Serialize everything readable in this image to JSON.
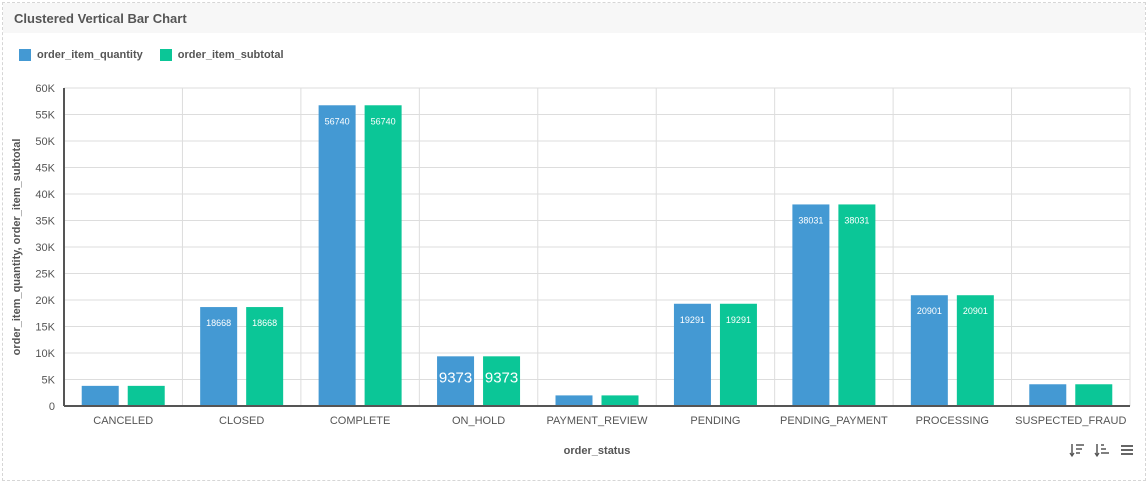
{
  "header": {
    "title": "Clustered Vertical Bar Chart"
  },
  "legend": {
    "items": [
      {
        "label": "order_item_quantity",
        "color": "#4499d3"
      },
      {
        "label": "order_item_subtotal",
        "color": "#0bc697"
      }
    ]
  },
  "toolbar": {
    "icons": [
      "sort-descending-icon",
      "sort-ascending-icon",
      "menu-icon"
    ]
  },
  "chart_data": {
    "type": "bar",
    "title": "",
    "xlabel": "order_status",
    "ylabel": "order_item_quantity, order_item_subtotal",
    "ylim": [
      0,
      60000
    ],
    "yticks": [
      0,
      5000,
      10000,
      15000,
      20000,
      25000,
      30000,
      35000,
      40000,
      45000,
      50000,
      55000,
      60000
    ],
    "ytick_labels": [
      "0",
      "5K",
      "10K",
      "15K",
      "20K",
      "25K",
      "30K",
      "35K",
      "40K",
      "45K",
      "50K",
      "55K",
      "60K"
    ],
    "categories": [
      "CANCELED",
      "CLOSED",
      "COMPLETE",
      "ON_HOLD",
      "PAYMENT_REVIEW",
      "PENDING",
      "PENDING_PAYMENT",
      "PROCESSING",
      "SUSPECTED_FRAUD"
    ],
    "series": [
      {
        "name": "order_item_quantity",
        "color": "#4499d3",
        "values": [
          3800,
          18668,
          56740,
          9373,
          2000,
          19291,
          38031,
          20901,
          4100
        ]
      },
      {
        "name": "order_item_subtotal",
        "color": "#0bc697",
        "values": [
          3800,
          18668,
          56740,
          9373,
          2000,
          19291,
          38031,
          20901,
          4100
        ]
      }
    ],
    "data_labels": [
      [
        null,
        "18668",
        "56740",
        "9373",
        null,
        "19291",
        "38031",
        "20901",
        null
      ],
      [
        null,
        "18668",
        "56740",
        "9373",
        null,
        "19291",
        "38031",
        "20901",
        null
      ]
    ],
    "grid": true,
    "legend_position": "top-left"
  }
}
